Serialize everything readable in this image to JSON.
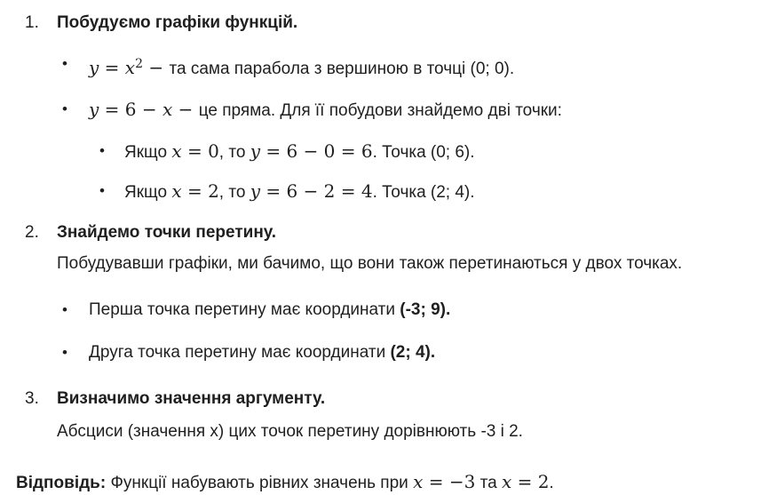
{
  "page": {
    "background": "#ffffff",
    "text_color": "#1f1f1f"
  },
  "document": {
    "bullet_char": "•",
    "blocks": [
      {
        "kind": "numbered",
        "number": "1.",
        "name": "step-1-heading",
        "segments": [
          {
            "t": "Побудуємо графіки функцій.",
            "s": "b"
          }
        ]
      },
      {
        "kind": "bullet1",
        "name": "parabola-bullet",
        "segments": [
          {
            "t": "y",
            "s": "mi"
          },
          {
            "t": " = ",
            "s": "m"
          },
          {
            "t": "x",
            "s": "mi"
          },
          {
            "t": "2",
            "s": "sup"
          },
          {
            "t": " − ",
            "s": "m"
          },
          {
            "t": "та сама парабола з вершиною в точці (0; 0).",
            "s": "n"
          }
        ]
      },
      {
        "kind": "bullet1",
        "name": "line-bullet",
        "segments": [
          {
            "t": "y",
            "s": "mi"
          },
          {
            "t": " = 6 − ",
            "s": "m"
          },
          {
            "t": "x",
            "s": "mi"
          },
          {
            "t": " − ",
            "s": "m"
          },
          {
            "t": "це пряма. Для її побудови знайдемо дві точки:",
            "s": "n"
          }
        ]
      },
      {
        "kind": "bullet2",
        "name": "point-x0-bullet",
        "segments": [
          {
            "t": "Якщо ",
            "s": "n"
          },
          {
            "t": "x",
            "s": "mi"
          },
          {
            "t": " = 0",
            "s": "m"
          },
          {
            "t": ", то ",
            "s": "n"
          },
          {
            "t": "y",
            "s": "mi"
          },
          {
            "t": " = 6 − 0 = 6",
            "s": "m"
          },
          {
            "t": ". Точка (0; 6).",
            "s": "n"
          }
        ]
      },
      {
        "kind": "bullet2",
        "name": "point-x2-bullet",
        "segments": [
          {
            "t": "Якщо ",
            "s": "n"
          },
          {
            "t": "x",
            "s": "mi"
          },
          {
            "t": " = 2",
            "s": "m"
          },
          {
            "t": ", то ",
            "s": "n"
          },
          {
            "t": "y",
            "s": "mi"
          },
          {
            "t": " = 6 − 2 = 4",
            "s": "m"
          },
          {
            "t": ". Точка (2; 4).",
            "s": "n"
          }
        ]
      },
      {
        "kind": "numbered",
        "number": "2.",
        "name": "step-2-heading",
        "segments": [
          {
            "t": "Знайдемо точки перетину.",
            "s": "b"
          }
        ]
      },
      {
        "kind": "paragraph",
        "name": "intersection-paragraph",
        "segments": [
          {
            "t": "Побудувавши графіки, ми бачимо, що вони також перетинаються у двох точках.",
            "s": "n"
          }
        ]
      },
      {
        "kind": "bullet1",
        "name": "first-intersection-bullet",
        "segments": [
          {
            "t": "Перша точка перетину має координати ",
            "s": "n"
          },
          {
            "t": "(-3; 9).",
            "s": "b"
          }
        ]
      },
      {
        "kind": "bullet1",
        "name": "second-intersection-bullet",
        "segments": [
          {
            "t": "Друга точка перетину має координати ",
            "s": "n"
          },
          {
            "t": "(2; 4).",
            "s": "b"
          }
        ]
      },
      {
        "kind": "numbered",
        "number": "3.",
        "name": "step-3-heading",
        "segments": [
          {
            "t": "Визначимо значення аргументу.",
            "s": "b"
          }
        ]
      },
      {
        "kind": "paragraph",
        "name": "abscissa-paragraph",
        "segments": [
          {
            "t": "Абсциси (значення x) цих точок перетину дорівнюють -3 і 2.",
            "s": "n"
          }
        ]
      },
      {
        "kind": "answer",
        "name": "answer-line",
        "segments": [
          {
            "t": "Відповідь:",
            "s": "b"
          },
          {
            "t": " Функції набувають рівних значень при ",
            "s": "n"
          },
          {
            "t": "x",
            "s": "mi"
          },
          {
            "t": " = −3",
            "s": "m"
          },
          {
            "t": " та ",
            "s": "n"
          },
          {
            "t": "x",
            "s": "mi"
          },
          {
            "t": " = 2",
            "s": "m"
          },
          {
            "t": ".",
            "s": "n"
          }
        ]
      }
    ]
  }
}
